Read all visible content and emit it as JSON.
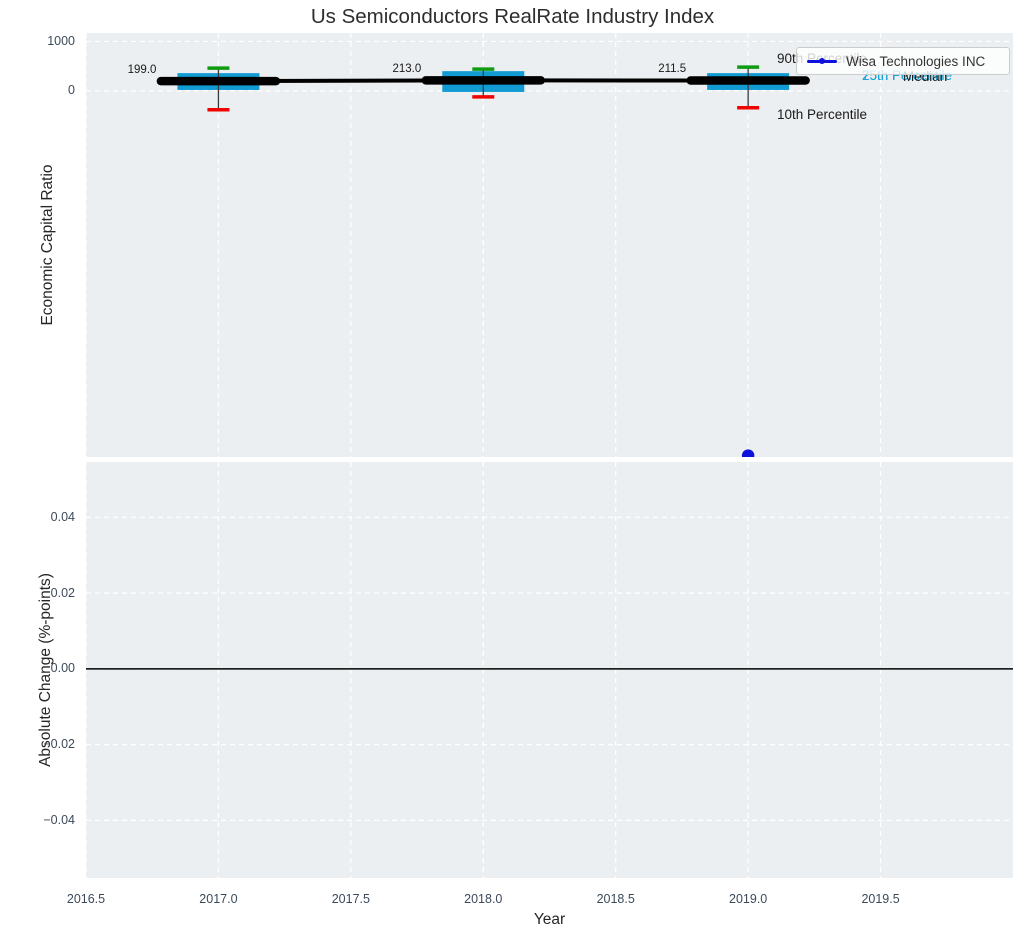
{
  "figure": {
    "title": "Us Semiconductors RealRate Industry Index",
    "xlabel": "Year",
    "background": "#ffffff",
    "axes_background": "#eceff1",
    "grid_color": "#ffffff",
    "tick_color": "#3b4a5a",
    "text_color": "#262626"
  },
  "chart_data": [
    {
      "type": "boxplot",
      "title": "Us Semiconductors RealRate Industry Index",
      "xlabel": "Year",
      "ylabel": "Economic Capital Ratio",
      "xlim": [
        2016.5,
        2020.0
      ],
      "ylim": [
        -7390,
        1170
      ],
      "xticks": [
        2016.5,
        2017.0,
        2017.5,
        2018.0,
        2018.5,
        2019.0,
        2019.5
      ],
      "xtick_labels": [
        "2016.5",
        "2017.0",
        "2017.5",
        "2018.0",
        "2018.5",
        "2019.0",
        "2019.5"
      ],
      "yticks": [
        0,
        1000
      ],
      "ytick_labels": [
        "0",
        "1000"
      ],
      "grid": "white dashed, vertical at each half-year, horizontal at yticks",
      "legend": {
        "position": "upper right",
        "entries": [
          {
            "label": "Wisa Technologies INC",
            "color": "#0e10dc",
            "style": "line-with-marker"
          }
        ]
      },
      "boxes": [
        {
          "year": 2017,
          "median": 199.0,
          "median_label": "199.0",
          "q1": 20,
          "q3": 360,
          "p10": -380,
          "p90": 460
        },
        {
          "year": 2018,
          "median": 213.0,
          "median_label": "213.0",
          "q1": -20,
          "q3": 400,
          "p10": -120,
          "p90": 440
        },
        {
          "year": 2019,
          "median": 211.5,
          "median_label": "211.5",
          "q1": 20,
          "q3": 360,
          "p10": -340,
          "p90": 480
        }
      ],
      "median_series": {
        "name": "Median",
        "x": [
          2017,
          2018,
          2019
        ],
        "y": [
          199.0,
          213.0,
          211.5
        ]
      },
      "company_series": {
        "name": "Wisa Technologies INC",
        "x": [
          2019
        ],
        "y": [
          -7360
        ]
      },
      "annotations": [
        {
          "text": "90th Percentile",
          "color": "#1a1a1a"
        },
        {
          "text": "75th Percentile",
          "color": "#18a2d8"
        },
        {
          "text": "25th Percentile",
          "color": "#18a2d8"
        },
        {
          "text": "Median",
          "color": "#1a1a1a"
        },
        {
          "text": "10th Percentile",
          "color": "#1a1a1a"
        }
      ],
      "colors": {
        "box": "#119bd2",
        "p90_cap": "#109c10",
        "p10_cap": "#ee0400",
        "median": "#000000",
        "company": "#0e10dc",
        "whisker": "#3a3a3a"
      }
    },
    {
      "type": "line",
      "title": "",
      "xlabel": "Year",
      "ylabel": "Absolute Change (%-points)",
      "xlim": [
        2016.5,
        2020.0
      ],
      "ylim": [
        -0.0552,
        0.0546
      ],
      "yticks": [
        0.04,
        0.02,
        0.0,
        -0.02,
        -0.04
      ],
      "ytick_labels": [
        "0.04",
        "0.02",
        "0.00",
        "−0.02",
        "−0.04"
      ],
      "zero_line": {
        "value": 0.0,
        "color": "#000000"
      },
      "series": []
    }
  ]
}
